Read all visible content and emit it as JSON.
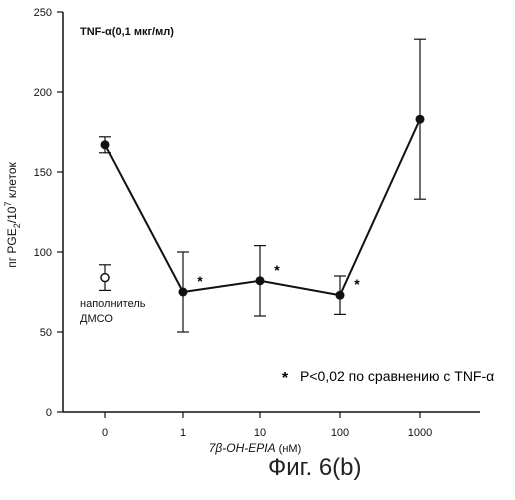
{
  "chart_data": {
    "type": "line",
    "condition_label": "TNF-α(0,1 мкг/мл)",
    "ylabel": "пг PGE",
    "ylabel_sub": "2",
    "ylabel_mid": "/10",
    "ylabel_sup": "7",
    "ylabel_end": " клеток",
    "xlabel": "7β-OH-EPIA",
    "xlabel_unit": " (нМ)",
    "ylim": [
      0,
      250
    ],
    "yticks": [
      "0",
      "50",
      "100",
      "150",
      "200",
      "250"
    ],
    "xticks": [
      "0",
      "1",
      "10",
      "100",
      "1000"
    ],
    "series": [
      {
        "x": [
          "0",
          "1",
          "10",
          "100",
          "1000"
        ],
        "values": [
          167,
          75,
          82,
          73,
          183
        ],
        "err": [
          5,
          25,
          22,
          12,
          50
        ],
        "significant": [
          false,
          true,
          true,
          true,
          false
        ]
      }
    ],
    "vehicle": {
      "value": 84,
      "err": 8,
      "label_line1": "наполнитель",
      "label_line2": "ДМСО"
    },
    "significance_marker": "*",
    "significance_note": "P<0,02 по сравнению с TNF-α"
  },
  "caption": "Фиг. 6(b)"
}
